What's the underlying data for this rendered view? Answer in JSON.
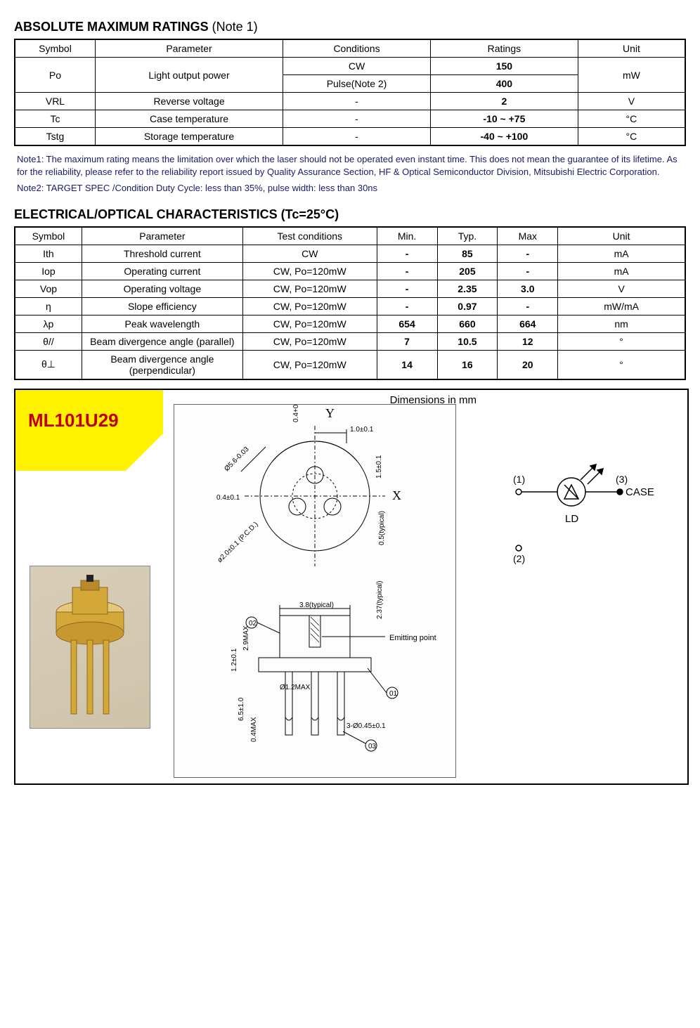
{
  "section1": {
    "title_main": "ABSOLUTE MAXIMUM RATINGS",
    "title_note": " (Note 1)",
    "headers": [
      "Symbol",
      "Parameter",
      "Conditions",
      "Ratings",
      "Unit"
    ],
    "rows": [
      {
        "symbol": "Po",
        "parameter": "Light output power",
        "cond1": "CW",
        "rate1": "150",
        "cond2": "Pulse(Note 2)",
        "rate2": "400",
        "unit": "mW"
      },
      {
        "symbol": "VRL",
        "parameter": "Reverse voltage",
        "conditions": "-",
        "ratings": "2",
        "unit": "V"
      },
      {
        "symbol": "Tc",
        "parameter": "Case temperature",
        "conditions": "-",
        "ratings": "-10 ~  +75",
        "unit": "°C"
      },
      {
        "symbol": "Tstg",
        "parameter": "Storage temperature",
        "conditions": "-",
        "ratings": "-40  ~  +100",
        "unit": "°C"
      }
    ]
  },
  "notes": {
    "note1": "Note1: The maximum rating means the limitation over which the laser should not be operated even instant time. This does not mean the guarantee of its lifetime. As for the reliability, please refer to the reliability report issued by Quality Assurance Section, HF & Optical Semiconductor Division, Mitsubishi Electric Corporation.",
    "note2": "Note2: TARGET SPEC /Condition   Duty Cycle: less than 35%, pulse width:  less than 30ns"
  },
  "section2": {
    "title": "ELECTRICAL/OPTICAL CHARACTERISTICS (Tc=25°C)",
    "headers": [
      "Symbol",
      "Parameter",
      "Test conditions",
      "Min.",
      "Typ.",
      "Max",
      "Unit"
    ],
    "rows": [
      {
        "symbol": "Ith",
        "parameter": "Threshold  current",
        "cond": "CW",
        "min": "-",
        "typ": "85",
        "max": "-",
        "unit": "mA"
      },
      {
        "symbol": "Iop",
        "parameter": "Operating current",
        "cond": "CW, Po=120mW",
        "min": "-",
        "typ": "205",
        "max": "-",
        "unit": "mA"
      },
      {
        "symbol": "Vop",
        "parameter": "Operating  voltage",
        "cond": "CW, Po=120mW",
        "min": "-",
        "typ": "2.35",
        "max": "3.0",
        "unit": "V"
      },
      {
        "symbol": "η",
        "parameter": "Slope  efficiency",
        "cond": "CW, Po=120mW",
        "min": "-",
        "typ": "0.97",
        "max": "-",
        "unit": "mW/mA"
      },
      {
        "symbol": "λp",
        "parameter": "Peak  wavelength",
        "cond": "CW, Po=120mW",
        "min": "654",
        "typ": "660",
        "max": "664",
        "unit": "nm"
      },
      {
        "symbol": "θ//",
        "parameter": "Beam divergence angle (parallel)",
        "cond": "CW, Po=120mW",
        "min": "7",
        "typ": "10.5",
        "max": "12",
        "unit": "°"
      },
      {
        "symbol": "θ⊥",
        "parameter": "Beam divergence angle (perpendicular)",
        "cond": "CW, Po=120mW",
        "min": "14",
        "typ": "16",
        "max": "20",
        "unit": "°"
      }
    ]
  },
  "diagram": {
    "part_number": "ML101U29",
    "dimensions_label": "Dimensions in mm",
    "axis_y": "Y",
    "axis_x": "X",
    "top_dims": {
      "d_outer": "Ø5.6-0.03",
      "pcd": "ø2.0±0.1 (P.C.D.)",
      "offset_x": "0.4±0.1",
      "offset_y": "1.0±0.1",
      "height_small": "0.4+0.1",
      "side1": "1.5±0.1",
      "side2": "0.5(typical)"
    },
    "side_dims": {
      "body_w": "3.8(typical)",
      "emit_h": "2.37(typical)",
      "emit_label": "Emitting point",
      "total_h": "2.9MAX",
      "flange_t": "1.2±0.1",
      "pin_len": "6.5±1.0",
      "pin_stub": "0.4MAX",
      "pin_d": "Ø1.2MAX",
      "pin_tip": "3-Ø0.45±0.1"
    },
    "pins": {
      "p1": "(1)",
      "p2": "(2)",
      "p3": "(3)",
      "case": "CASE",
      "ld": "LD"
    },
    "colors": {
      "badge_bg": "#fff200",
      "badge_text": "#c00000",
      "gold1": "#d4a838",
      "gold2": "#b8892a",
      "gold3": "#e8c878"
    }
  },
  "layout": {
    "col_widths_t1": [
      "12%",
      "28%",
      "22%",
      "22%",
      "16%"
    ],
    "col_widths_t2": [
      "10%",
      "24%",
      "20%",
      "9%",
      "9%",
      "9%",
      "19%"
    ]
  }
}
